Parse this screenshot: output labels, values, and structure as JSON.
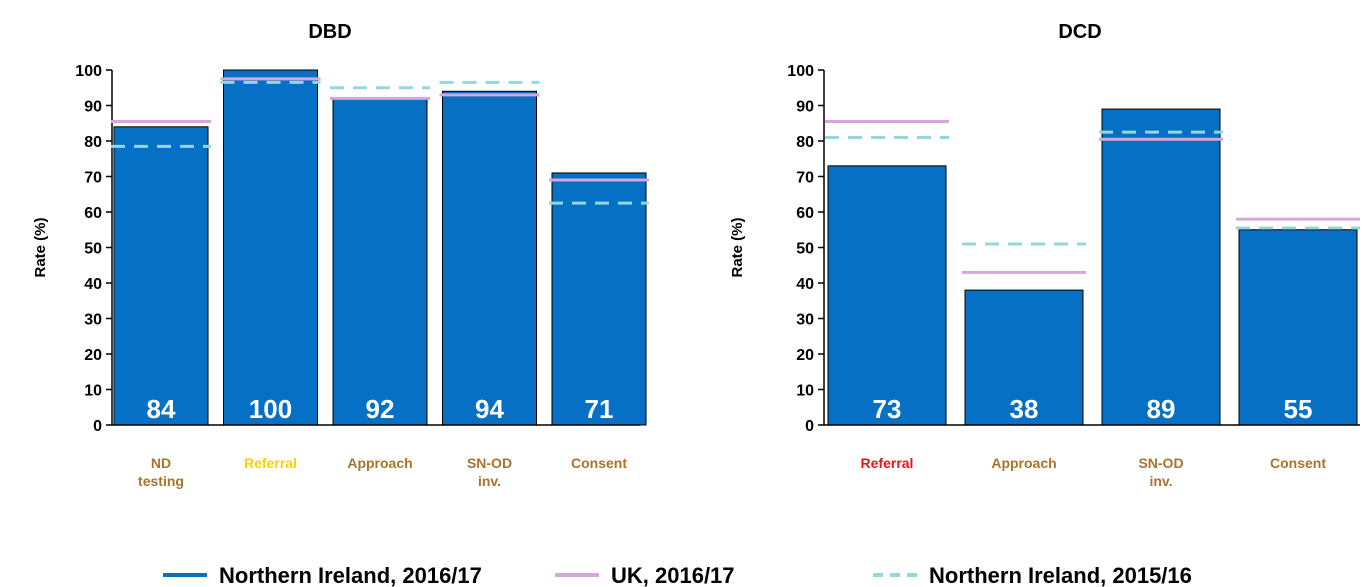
{
  "chart_data": [
    {
      "type": "bar",
      "title": "DBD",
      "y_label": "Rate (%)",
      "categories": [
        "ND testing",
        "Referral",
        "Approach",
        "SN-OD inv.",
        "Consent"
      ],
      "category_colors": [
        "#a8742c",
        "#f5d10a",
        "#a8742c",
        "#a8742c",
        "#a8742c"
      ],
      "ylim": [
        0,
        100
      ],
      "yticks": [
        0,
        10,
        20,
        30,
        40,
        50,
        60,
        70,
        80,
        90,
        100
      ],
      "series": [
        {
          "name": "Northern Ireland, 2016/17",
          "color": "#0570c4",
          "values": [
            84,
            100,
            92,
            94,
            71
          ]
        },
        {
          "name": "UK, 2016/17",
          "color": "#d6a6de",
          "values": [
            85.5,
            97.5,
            92,
            93,
            69
          ]
        },
        {
          "name": "Northern Ireland, 2015/16",
          "color": "#93d8dc",
          "dashed": true,
          "values": [
            78.5,
            96.5,
            95,
            96.5,
            62.5
          ]
        }
      ]
    },
    {
      "type": "bar",
      "title": "DCD",
      "y_label": "Rate (%)",
      "categories": [
        "Referral",
        "Approach",
        "SN-OD inv.",
        "Consent"
      ],
      "category_colors": [
        "#e8151a",
        "#a8742c",
        "#a8742c",
        "#a8742c"
      ],
      "ylim": [
        0,
        100
      ],
      "yticks": [
        0,
        10,
        20,
        30,
        40,
        50,
        60,
        70,
        80,
        90,
        100
      ],
      "series": [
        {
          "color": "#0570c4",
          "values": [
            73,
            38,
            89,
            55
          ]
        },
        {
          "color": "#d6a6de",
          "values": [
            85.5,
            43,
            80.5,
            58
          ]
        },
        {
          "color": "#93d8dc",
          "dashed": true,
          "values": [
            81,
            51,
            82.5,
            55.5
          ]
        }
      ]
    }
  ]
}
